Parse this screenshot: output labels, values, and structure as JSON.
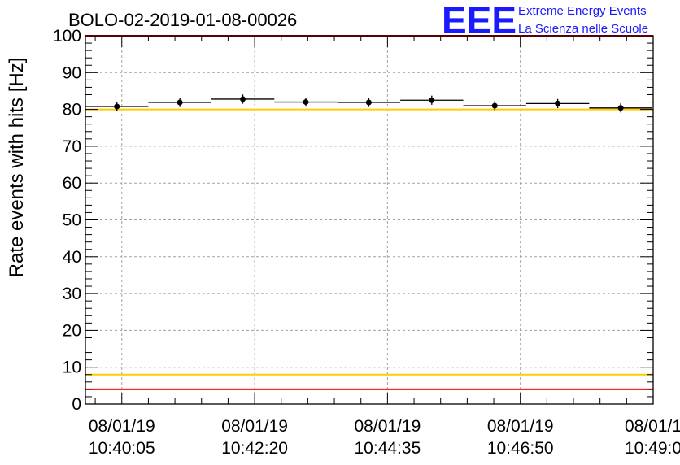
{
  "chart_data": {
    "type": "scatter",
    "title": "BOLO-02-2019-01-08-00026",
    "ylabel": "Rate events with hits [Hz]",
    "xlabel": "",
    "ylim": [
      0,
      100
    ],
    "yticks": [
      0,
      10,
      20,
      30,
      40,
      50,
      60,
      70,
      80,
      90,
      100
    ],
    "xticks": [
      {
        "date": "08/01/19",
        "time": "10:40:05"
      },
      {
        "date": "08/01/19",
        "time": "10:42:20"
      },
      {
        "date": "08/01/19",
        "time": "10:44:35"
      },
      {
        "date": "08/01/19",
        "time": "10:46:50"
      },
      {
        "date": "08/01/1",
        "time": "10:49:0"
      }
    ],
    "x_range": [
      "10:39:28",
      "10:49:05"
    ],
    "grid": true,
    "series": [
      {
        "points": [
          {
            "start": "10:39:28",
            "end": "10:40:32",
            "center": "10:40:00",
            "value": 80.8,
            "err": 0.8
          },
          {
            "start": "10:40:32",
            "end": "10:41:36",
            "center": "10:41:04",
            "value": 81.9,
            "err": 0.8
          },
          {
            "start": "10:41:36",
            "end": "10:42:40",
            "center": "10:42:08",
            "value": 82.8,
            "err": 0.8
          },
          {
            "start": "10:42:40",
            "end": "10:43:44",
            "center": "10:43:12",
            "value": 82.0,
            "err": 0.8
          },
          {
            "start": "10:43:44",
            "end": "10:44:48",
            "center": "10:44:16",
            "value": 81.9,
            "err": 0.8
          },
          {
            "start": "10:44:48",
            "end": "10:45:52",
            "center": "10:45:20",
            "value": 82.5,
            "err": 0.8
          },
          {
            "start": "10:45:52",
            "end": "10:46:56",
            "center": "10:46:24",
            "value": 81.0,
            "err": 0.8
          },
          {
            "start": "10:46:56",
            "end": "10:48:00",
            "center": "10:47:28",
            "value": 81.6,
            "err": 0.8
          },
          {
            "start": "10:48:00",
            "end": "10:49:04",
            "center": "10:48:32",
            "value": 80.4,
            "err": 0.8
          }
        ]
      }
    ],
    "reference_lines": [
      {
        "value": 100,
        "color": "#ff0000"
      },
      {
        "value": 80,
        "color": "#ffcc00"
      },
      {
        "value": 8,
        "color": "#ffcc00"
      },
      {
        "value": 4,
        "color": "#ff0000"
      }
    ]
  },
  "logo": {
    "mark": "EEE",
    "line1": "Extreme Energy Events",
    "line2": "La Scienza nelle Scuole",
    "color": "#1a1aff"
  }
}
